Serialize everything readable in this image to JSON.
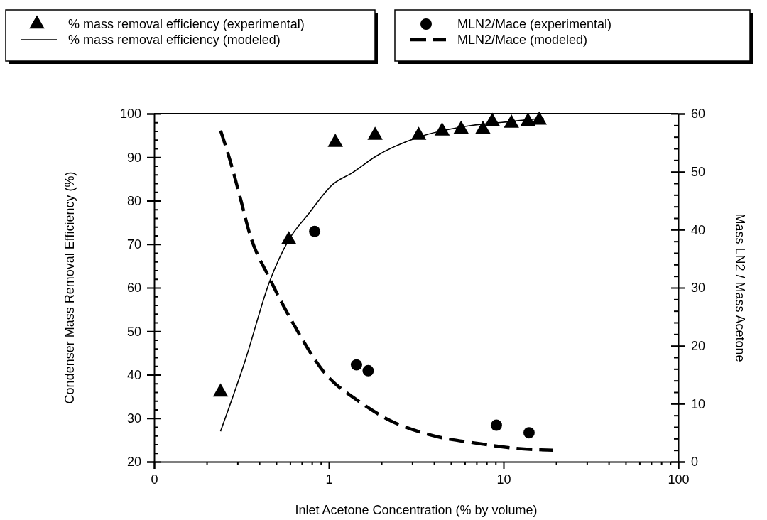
{
  "chart_data": {
    "type": "scatter",
    "xlabel": "Inlet Acetone Concentration (% by volume)",
    "ylabel": "Condenser Mass Removal Efficiency (%)",
    "y2label": "Mass LN2 / Mass Acetone",
    "log": "x",
    "legend": "top",
    "grid": false,
    "xlim": [
      0.1,
      100
    ],
    "xticks": [
      {
        "value": 0.1,
        "label": "0"
      },
      1,
      10,
      100,
      {
        "value": 0.2,
        "label": null
      },
      {
        "value": 0.3,
        "label": null
      },
      {
        "value": 0.4,
        "label": null
      },
      {
        "value": 0.5,
        "label": null
      },
      {
        "value": 0.6,
        "label": null
      },
      {
        "value": 0.7,
        "label": null
      },
      {
        "value": 0.8,
        "label": null
      },
      {
        "value": 0.9,
        "label": null
      },
      {
        "value": 2,
        "label": null
      },
      {
        "value": 3,
        "label": null
      },
      {
        "value": 4,
        "label": null
      },
      {
        "value": 5,
        "label": null
      },
      {
        "value": 6,
        "label": null
      },
      {
        "value": 7,
        "label": null
      },
      {
        "value": 8,
        "label": null
      },
      {
        "value": 9,
        "label": null
      },
      {
        "value": 20,
        "label": null
      },
      {
        "value": 30,
        "label": null
      },
      {
        "value": 40,
        "label": null
      },
      {
        "value": 50,
        "label": null
      },
      {
        "value": 60,
        "label": null
      },
      {
        "value": 70,
        "label": null
      },
      {
        "value": 80,
        "label": null
      },
      {
        "value": 90,
        "label": null
      }
    ],
    "ylim": [
      20,
      100
    ],
    "yticks": [
      20,
      30,
      40,
      50,
      60,
      70,
      80,
      90,
      100,
      {
        "value": 22,
        "label": null
      },
      {
        "value": 24,
        "label": null
      },
      {
        "value": 26,
        "label": null
      },
      {
        "value": 28,
        "label": null
      },
      {
        "value": 32,
        "label": null
      },
      {
        "value": 34,
        "label": null
      },
      {
        "value": 36,
        "label": null
      },
      {
        "value": 38,
        "label": null
      },
      {
        "value": 42,
        "label": null
      },
      {
        "value": 44,
        "label": null
      },
      {
        "value": 46,
        "label": null
      },
      {
        "value": 48,
        "label": null
      },
      {
        "value": 52,
        "label": null
      },
      {
        "value": 54,
        "label": null
      },
      {
        "value": 56,
        "label": null
      },
      {
        "value": 58,
        "label": null
      },
      {
        "value": 62,
        "label": null
      },
      {
        "value": 64,
        "label": null
      },
      {
        "value": 66,
        "label": null
      },
      {
        "value": 68,
        "label": null
      },
      {
        "value": 72,
        "label": null
      },
      {
        "value": 74,
        "label": null
      },
      {
        "value": 76,
        "label": null
      },
      {
        "value": 78,
        "label": null
      },
      {
        "value": 82,
        "label": null
      },
      {
        "value": 84,
        "label": null
      },
      {
        "value": 86,
        "label": null
      },
      {
        "value": 88,
        "label": null
      },
      {
        "value": 92,
        "label": null
      },
      {
        "value": 94,
        "label": null
      },
      {
        "value": 96,
        "label": null
      },
      {
        "value": 98,
        "label": null
      }
    ],
    "y2lim": [
      0,
      60
    ],
    "y2ticks": [
      0,
      10,
      20,
      30,
      40,
      50,
      60,
      {
        "value": 2,
        "label": null
      },
      {
        "value": 4,
        "label": null
      },
      {
        "value": 6,
        "label": null
      },
      {
        "value": 8,
        "label": null
      },
      {
        "value": 12,
        "label": null
      },
      {
        "value": 14,
        "label": null
      },
      {
        "value": 16,
        "label": null
      },
      {
        "value": 18,
        "label": null
      },
      {
        "value": 22,
        "label": null
      },
      {
        "value": 24,
        "label": null
      },
      {
        "value": 26,
        "label": null
      },
      {
        "value": 28,
        "label": null
      },
      {
        "value": 32,
        "label": null
      },
      {
        "value": 34,
        "label": null
      },
      {
        "value": 36,
        "label": null
      },
      {
        "value": 38,
        "label": null
      },
      {
        "value": 42,
        "label": null
      },
      {
        "value": 44,
        "label": null
      },
      {
        "value": 46,
        "label": null
      },
      {
        "value": 48,
        "label": null
      },
      {
        "value": 52,
        "label": null
      },
      {
        "value": 54,
        "label": null
      },
      {
        "value": 56,
        "label": null
      },
      {
        "value": 58,
        "label": null
      }
    ],
    "series": [
      {
        "name": "% mass removal efficiency (experimental)",
        "marker": "triangle",
        "color": "#000000",
        "x": [
          0.24,
          0.59,
          1.09,
          1.84,
          3.27,
          4.45,
          5.72,
          7.62,
          8.62,
          11.1,
          13.8,
          16.0
        ],
        "values": [
          36,
          71,
          93.4,
          95,
          95,
          96,
          96.4,
          96.4,
          98.2,
          97.8,
          98.2,
          98.5
        ]
      },
      {
        "name": "% mass removal efficiency (modeled)",
        "type": "line",
        "line_style": "solid",
        "color": "#000000",
        "x": [
          0.24,
          0.33,
          0.46,
          0.59,
          0.77,
          1.05,
          1.36,
          1.86,
          3.27,
          6.1,
          9.8,
          15.7,
          17
        ],
        "values": [
          27,
          42.9,
          61.6,
          71,
          77.1,
          83.7,
          86.4,
          90.2,
          94.6,
          97.1,
          98,
          98.8,
          98.9
        ]
      },
      {
        "name": "MLN2/Mace (experimental)",
        "marker": "circle",
        "axis": "y2",
        "color": "#000000",
        "x": [
          0.83,
          1.44,
          1.68,
          9.1,
          14.0
        ],
        "values": [
          39.7,
          16.7,
          15.7,
          6.3,
          5.0
        ]
      },
      {
        "name": "MLN2/Mace (modeled)",
        "type": "line",
        "line_style": "dashed",
        "axis": "y2",
        "color": "#000000",
        "x": [
          0.24,
          0.265,
          0.315,
          0.35,
          0.46,
          0.64,
          0.93,
          1.49,
          2.18,
          3.83,
          7.4,
          11.9,
          19.1
        ],
        "values": [
          57.1,
          53.1,
          44.9,
          39.6,
          31.5,
          23.3,
          15.6,
          10.4,
          7.3,
          4.6,
          3.1,
          2.3,
          2.0
        ]
      }
    ]
  }
}
